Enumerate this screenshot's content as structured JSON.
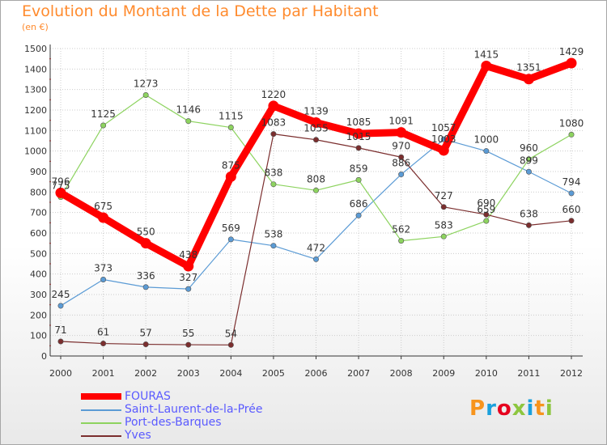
{
  "title": "Evolution du Montant de la Dette par Habitant",
  "unit_label": "(en €)",
  "logo_text": "Proxiti",
  "logo_colors": [
    "#f7941d",
    "#1aa0dc",
    "#e6001e",
    "#8dc63f",
    "#1aa0dc",
    "#f7941d",
    "#8dc63f"
  ],
  "chart_data": {
    "type": "line",
    "x": [
      "2000",
      "2001",
      "2002",
      "2003",
      "2004",
      "2005",
      "2006",
      "2007",
      "2008",
      "2009",
      "2010",
      "2011",
      "2012"
    ],
    "ylim": [
      0,
      1500
    ],
    "yticks": [
      0,
      100,
      200,
      300,
      400,
      500,
      600,
      700,
      800,
      900,
      1000,
      1100,
      1200,
      1300,
      1400,
      1500
    ],
    "grid": true,
    "legend_position": "bottom-left",
    "series": [
      {
        "name": "Saint-Laurent-de-la-Prée",
        "color": "#5b9bd5",
        "values": [
          245,
          373,
          336,
          327,
          569,
          538,
          472,
          686,
          886,
          1057,
          1000,
          899,
          794
        ],
        "labels": [
          "245",
          "373",
          "336",
          "327",
          "569",
          "538",
          "472",
          "686",
          "886",
          "1057",
          "1000",
          "899",
          "794"
        ]
      },
      {
        "name": "Port-des-Barques",
        "color": "#8dd35f",
        "values": [
          775,
          1125,
          1273,
          1146,
          1115,
          838,
          808,
          859,
          562,
          583,
          659,
          960,
          1080
        ],
        "labels": [
          "775",
          "1125",
          "1273",
          "1146",
          "1115",
          "838",
          "808",
          "859",
          "562",
          "583",
          "659",
          "960",
          "1080"
        ]
      },
      {
        "name": "Yves",
        "color": "#7b2e2e",
        "values": [
          71,
          61,
          57,
          55,
          54,
          1083,
          1055,
          1015,
          970,
          727,
          690,
          638,
          660
        ],
        "labels": [
          "71",
          "61",
          "57",
          "55",
          "54",
          "1083",
          "1055",
          "1015",
          "970",
          "727",
          "690",
          "638",
          "660"
        ]
      },
      {
        "name": "FOURAS",
        "color": "#ff0000",
        "values": [
          796,
          675,
          550,
          438,
          875,
          1220,
          1139,
          1085,
          1091,
          1003,
          1415,
          1351,
          1429
        ],
        "labels": [
          "796",
          "675",
          "550",
          "438",
          "875",
          "1220",
          "1139",
          "1085",
          "1091",
          "1003",
          "1415",
          "1351",
          "1429"
        ]
      }
    ]
  },
  "legend": [
    {
      "label": "FOURAS",
      "color": "#ff0000"
    },
    {
      "label": "Saint-Laurent-de-la-Prée",
      "color": "#5b9bd5"
    },
    {
      "label": "Port-des-Barques",
      "color": "#8dd35f"
    },
    {
      "label": "Yves",
      "color": "#7b2e2e"
    }
  ]
}
